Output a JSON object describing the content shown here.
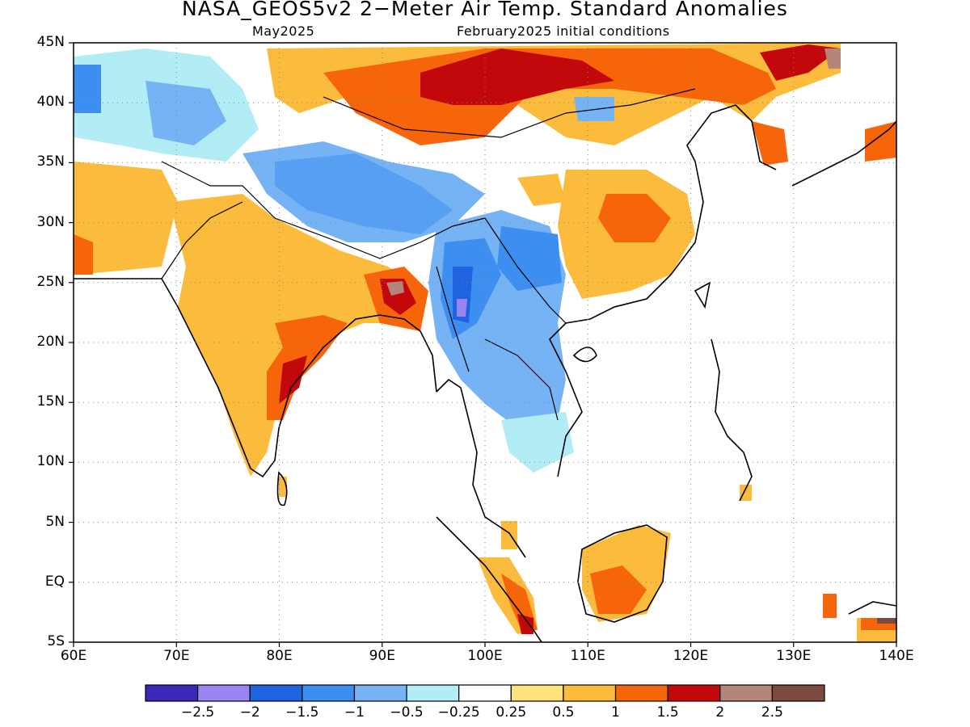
{
  "title": "NASA_GEOS5v2 2−Meter Air Temp. Standard Anomalies",
  "subtitle_left": "May2025",
  "subtitle_right": "February2025 initial conditions",
  "lat_ticks": [
    "45N",
    "40N",
    "35N",
    "30N",
    "25N",
    "20N",
    "15N",
    "10N",
    "5N",
    "EQ",
    "5S"
  ],
  "lon_ticks": [
    "60E",
    "70E",
    "80E",
    "90E",
    "100E",
    "110E",
    "120E",
    "130E",
    "140E"
  ],
  "colorbar": {
    "colors": [
      "#3a28b8",
      "#9a85f2",
      "#1f63e0",
      "#3c8ef0",
      "#75b3f5",
      "#b2ecf5",
      "#ffffff",
      "#ffe27a",
      "#fbbb3c",
      "#f7650a",
      "#c2080a",
      "#b4867a",
      "#7a4b3e"
    ],
    "labels": [
      "−2.5",
      "−2",
      "−1.5",
      "−1",
      "−0.5",
      "−0.25",
      "0.25",
      "0.5",
      "1",
      "1.5",
      "2",
      "2.5"
    ]
  }
}
